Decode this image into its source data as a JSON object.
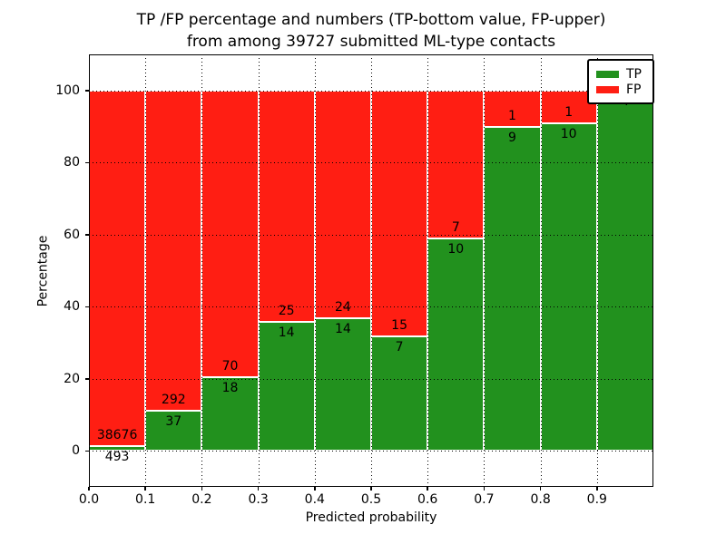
{
  "chart_data": {
    "type": "bar",
    "stacked": true,
    "normalized_to_percent": true,
    "title": "TP /FP percentage and numbers (TP-bottom value, FP-upper) from among 39727 submitted ML-type contacts",
    "title_lines": [
      "TP /FP percentage and numbers (TP-bottom value, FP-upper)",
      "from among 39727 submitted ML-type contacts"
    ],
    "total_contacts": 39727,
    "xlabel": "Predicted probability",
    "ylabel": "Percentage",
    "xlim": [
      0.0,
      1.0
    ],
    "ylim": [
      -10,
      110
    ],
    "grid": "dotted",
    "legend": {
      "position": "upper-right",
      "entries": [
        "TP",
        "FP"
      ]
    },
    "colors": {
      "tp": "#22911e",
      "fp": "#ff1e13",
      "background": "#ffffff",
      "axis": "#000000"
    },
    "xticks": {
      "values": [
        0.0,
        0.1,
        0.2,
        0.3,
        0.4,
        0.5,
        0.6,
        0.7,
        0.8,
        0.9
      ],
      "labels": [
        "0.0",
        "0.1",
        "0.2",
        "0.3",
        "0.4",
        "0.5",
        "0.6",
        "0.7",
        "0.8",
        "0.9"
      ]
    },
    "yticks": {
      "values": [
        0,
        20,
        40,
        60,
        80,
        100
      ],
      "labels": [
        "0",
        "20",
        "40",
        "60",
        "80",
        "100"
      ]
    },
    "bins": [
      {
        "x0": 0.0,
        "x1": 0.1,
        "tp": 493,
        "fp": 38676,
        "tp_pct": 1.26,
        "fp_pct": 98.74
      },
      {
        "x0": 0.1,
        "x1": 0.2,
        "tp": 37,
        "fp": 292,
        "tp_pct": 11.25,
        "fp_pct": 88.75
      },
      {
        "x0": 0.2,
        "x1": 0.3,
        "tp": 18,
        "fp": 70,
        "tp_pct": 20.45,
        "fp_pct": 79.55
      },
      {
        "x0": 0.3,
        "x1": 0.4,
        "tp": 14,
        "fp": 25,
        "tp_pct": 35.9,
        "fp_pct": 64.1
      },
      {
        "x0": 0.4,
        "x1": 0.5,
        "tp": 14,
        "fp": 24,
        "tp_pct": 36.84,
        "fp_pct": 63.16
      },
      {
        "x0": 0.5,
        "x1": 0.6,
        "tp": 7,
        "fp": 15,
        "tp_pct": 31.82,
        "fp_pct": 68.18
      },
      {
        "x0": 0.6,
        "x1": 0.7,
        "tp": 10,
        "fp": 7,
        "tp_pct": 58.82,
        "fp_pct": 41.18
      },
      {
        "x0": 0.7,
        "x1": 0.8,
        "tp": 9,
        "fp": 1,
        "tp_pct": 90.0,
        "fp_pct": 10.0
      },
      {
        "x0": 0.8,
        "x1": 0.9,
        "tp": 10,
        "fp": 1,
        "tp_pct": 90.91,
        "fp_pct": 9.09
      },
      {
        "x0": 0.9,
        "x1": 1.0,
        "tp": 4,
        "fp": 0,
        "tp_pct": 100.0,
        "fp_pct": 0.0
      }
    ]
  }
}
